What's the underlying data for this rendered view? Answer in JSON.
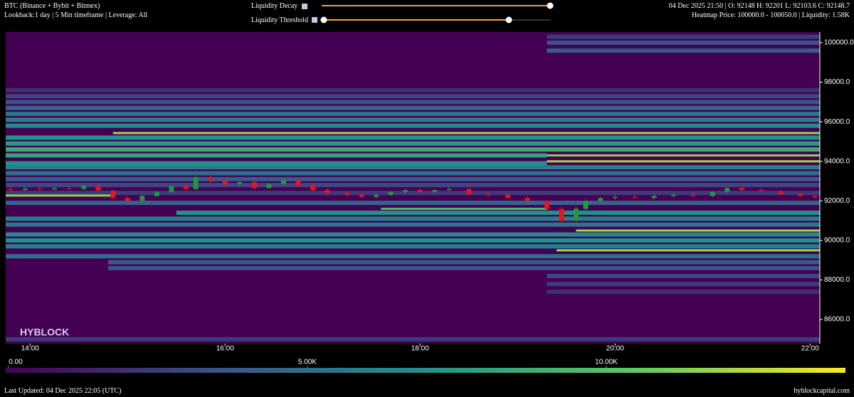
{
  "header": {
    "title": "BTC (Binance + Bybit + Bitmex)",
    "settings": "Lookback:1 day | 5 Min timeframe | Leverage: All",
    "decay_label": "Liquidity Decay",
    "threshold_label": "Liquidity Threshold",
    "ohlc": "04 Dec 2025 21:50 | O: 92148 H: 92201 L: 92103.6 C: 92148.7",
    "hover": "Heatmap Price: 100000.0 - 100050.0 | Liquidity: 1.58K"
  },
  "chart_data": {
    "type": "heatmap",
    "watermark": "HYBLOCK",
    "colormap": "viridis",
    "xlim": [
      13.75,
      22.1
    ],
    "xticks": [
      {
        "value": 14,
        "label": "14:00"
      },
      {
        "value": 16,
        "label": "16:00"
      },
      {
        "value": 18,
        "label": "18:00"
      },
      {
        "value": 20,
        "label": "20:00"
      },
      {
        "value": 22,
        "label": "22:00"
      }
    ],
    "ylim": [
      84780,
      100540
    ],
    "yticks": [
      {
        "value": 86000,
        "label": "86000.0"
      },
      {
        "value": 88000,
        "label": "88000.0"
      },
      {
        "value": 90000,
        "label": "90000.0"
      },
      {
        "value": 92000,
        "label": "92000.0"
      },
      {
        "value": 94000,
        "label": "94000.0"
      },
      {
        "value": 96000,
        "label": "96000.0"
      },
      {
        "value": 98000,
        "label": "98000.0"
      },
      {
        "value": 100000,
        "label": "100000.0"
      }
    ],
    "clim": [
      0,
      14000
    ],
    "cticks": [
      {
        "value": 0,
        "label": "0.00"
      },
      {
        "value": 5000,
        "label": "5.00K"
      },
      {
        "value": 10000,
        "label": "10.00K"
      }
    ],
    "bands": {
      "price": [
        100300,
        100000,
        99600,
        97600,
        97300,
        97000,
        96700,
        96400,
        96100,
        95800,
        95200,
        94900,
        94600,
        94300,
        93900,
        93700,
        93400,
        93100,
        92800,
        92400,
        91900,
        91400,
        91100,
        90800,
        90300,
        90000,
        89700,
        89200,
        88900,
        88600,
        88200,
        87800,
        87400,
        85000,
        95430,
        94300,
        94000,
        92270,
        91600,
        90500,
        89500
      ],
      "from": [
        19.3,
        19.3,
        19.3,
        13.75,
        13.75,
        13.75,
        13.75,
        13.75,
        13.75,
        13.75,
        13.75,
        13.75,
        13.75,
        13.75,
        13.75,
        13.75,
        13.75,
        13.75,
        13.75,
        13.75,
        13.75,
        15.5,
        13.75,
        13.75,
        13.75,
        13.75,
        13.75,
        13.75,
        14.8,
        14.8,
        19.3,
        19.3,
        19.3,
        13.75,
        14.85,
        19.3,
        19.3,
        13.75,
        17.6,
        19.6,
        19.4
      ],
      "to": [
        22.1,
        22.1,
        22.1,
        22.1,
        22.1,
        22.1,
        22.1,
        22.1,
        22.1,
        22.1,
        22.1,
        22.1,
        22.1,
        19.3,
        19.3,
        22.1,
        22.1,
        22.1,
        22.1,
        22.1,
        22.1,
        22.1,
        22.1,
        22.1,
        22.1,
        22.1,
        22.1,
        22.1,
        22.1,
        22.1,
        22.1,
        22.1,
        22.1,
        22.1,
        22.1,
        22.1,
        22.1,
        14.85,
        19.3,
        22.1,
        22.1
      ],
      "values": [
        2500,
        3500,
        4000,
        2000,
        3000,
        3500,
        4500,
        5500,
        6000,
        6500,
        7000,
        7500,
        8500,
        8000,
        7000,
        6000,
        5000,
        4000,
        3000,
        2500,
        4500,
        7000,
        6000,
        5500,
        6500,
        7000,
        6000,
        5000,
        4000,
        3500,
        3000,
        2500,
        2000,
        2500,
        12000,
        11500,
        12000,
        11500,
        9500,
        12000,
        12000
      ]
    },
    "up_color": "#1f9a3a",
    "down_color": "#e3161b",
    "candles": {
      "x": [
        13.8,
        13.95,
        14.1,
        14.25,
        14.4,
        14.55,
        14.7,
        14.85,
        15.0,
        15.15,
        15.3,
        15.45,
        15.6,
        15.7,
        15.85,
        16.0,
        16.15,
        16.3,
        16.45,
        16.6,
        16.75,
        16.9,
        17.05,
        17.25,
        17.4,
        17.55,
        17.7,
        17.85,
        18.0,
        18.15,
        18.3,
        18.5,
        18.7,
        18.9,
        19.1,
        19.3,
        19.45,
        19.6,
        19.7,
        19.85,
        20.0,
        20.2,
        20.4,
        20.6,
        20.8,
        21.0,
        21.15,
        21.3,
        21.5,
        21.7,
        21.9,
        22.05
      ],
      "open": [
        92600,
        92550,
        92620,
        92580,
        92640,
        92600,
        92780,
        92520,
        92150,
        92000,
        92250,
        92450,
        92750,
        92600,
        93200,
        93050,
        92850,
        92950,
        92650,
        92850,
        93050,
        92800,
        92550,
        92400,
        92300,
        92200,
        92300,
        92450,
        92550,
        92450,
        92550,
        92600,
        92350,
        92300,
        92150,
        92000,
        91600,
        91000,
        91600,
        92000,
        92150,
        92200,
        92150,
        92250,
        92300,
        92250,
        92450,
        92650,
        92550,
        92500,
        92350,
        92250
      ],
      "high": [
        92750,
        92700,
        92700,
        92680,
        92720,
        92820,
        92800,
        92560,
        92250,
        92300,
        92500,
        92800,
        92900,
        93300,
        93350,
        93150,
        93000,
        93100,
        92900,
        93150,
        93100,
        92900,
        92650,
        92500,
        92400,
        92350,
        92500,
        92600,
        92650,
        92600,
        92700,
        92650,
        92450,
        92400,
        92250,
        92050,
        91700,
        91700,
        92100,
        92200,
        92300,
        92350,
        92300,
        92400,
        92450,
        92500,
        92700,
        92750,
        92650,
        92550,
        92400,
        92300
      ],
      "low": [
        92450,
        92480,
        92500,
        92520,
        92560,
        92550,
        92480,
        92050,
        91900,
        91950,
        92200,
        92400,
        92500,
        92550,
        92900,
        92700,
        92750,
        92600,
        92600,
        92800,
        92700,
        92500,
        92350,
        92200,
        92150,
        92100,
        92250,
        92350,
        92400,
        92400,
        92500,
        92300,
        92200,
        92100,
        91950,
        91400,
        90900,
        90950,
        91500,
        91950,
        92050,
        92100,
        92050,
        92150,
        92200,
        92200,
        92400,
        92500,
        92450,
        92300,
        92200,
        92150
      ],
      "close": [
        92550,
        92620,
        92580,
        92640,
        92600,
        92780,
        92520,
        92150,
        92000,
        92250,
        92450,
        92750,
        92600,
        93200,
        93050,
        92850,
        92950,
        92650,
        92850,
        93050,
        92800,
        92550,
        92400,
        92300,
        92200,
        92300,
        92450,
        92550,
        92450,
        92550,
        92600,
        92350,
        92300,
        92150,
        92000,
        91600,
        91000,
        91600,
        92000,
        92150,
        92200,
        92150,
        92250,
        92300,
        92250,
        92450,
        92650,
        92550,
        92500,
        92350,
        92250,
        92180
      ]
    }
  },
  "footer": {
    "updated": "Last Updated: 04 Dec 2025 22:05 (UTC)",
    "site": "hyblockcapital.com"
  }
}
